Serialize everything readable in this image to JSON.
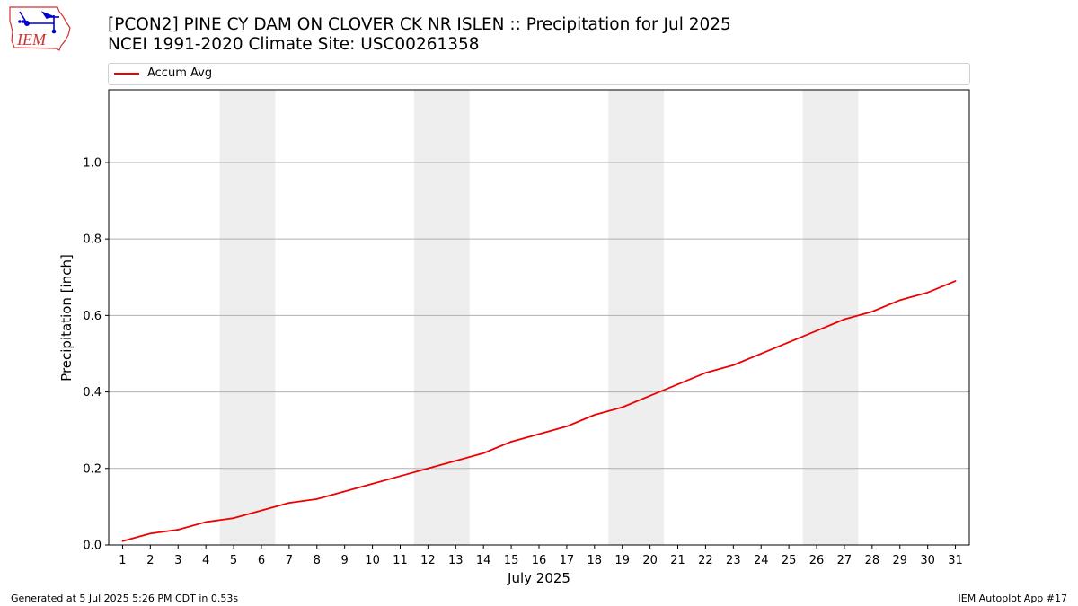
{
  "header": {
    "title_line1": "[PCON2] PINE CY DAM ON CLOVER CK NR ISLEN :: Precipitation for Jul 2025",
    "title_line2": "NCEI 1991-2020 Climate Site: USC00261358"
  },
  "logo": {
    "text": "IEM",
    "icon": "iem-logo-icon"
  },
  "colors": {
    "series": "#ee0000",
    "weekend_band": "#eeeeee",
    "grid": "#b0b0b0",
    "logo_outline": "#cc3333",
    "logo_figure": "#0000cc"
  },
  "chart_data": {
    "type": "line",
    "xlabel": "July 2025",
    "ylabel": "Precipitation [inch]",
    "x": [
      1,
      2,
      3,
      4,
      5,
      6,
      7,
      8,
      9,
      10,
      11,
      12,
      13,
      14,
      15,
      16,
      17,
      18,
      19,
      20,
      21,
      22,
      23,
      24,
      25,
      26,
      27,
      28,
      29,
      30,
      31
    ],
    "xlim": [
      0.5,
      31.5
    ],
    "ylim": [
      0,
      1.19
    ],
    "yticks": [
      0.0,
      0.2,
      0.4,
      0.6,
      0.8,
      1.0
    ],
    "ytick_labels": [
      "0.0",
      "0.2",
      "0.4",
      "0.6",
      "0.8",
      "1.0"
    ],
    "grid": "horizontal",
    "legend_position": "top, above plot",
    "shaded_weekends": [
      [
        5,
        6
      ],
      [
        12,
        13
      ],
      [
        19,
        20
      ],
      [
        26,
        27
      ]
    ],
    "series": [
      {
        "name": "Accum Avg",
        "values": [
          0.01,
          0.03,
          0.04,
          0.06,
          0.07,
          0.09,
          0.11,
          0.12,
          0.14,
          0.16,
          0.18,
          0.2,
          0.22,
          0.24,
          0.27,
          0.29,
          0.31,
          0.34,
          0.36,
          0.39,
          0.42,
          0.45,
          0.47,
          0.5,
          0.53,
          0.56,
          0.59,
          0.61,
          0.64,
          0.66,
          0.69
        ]
      }
    ]
  },
  "footer": {
    "left": "Generated at 5 Jul 2025 5:26 PM CDT in 0.53s",
    "right": "IEM Autoplot App #17"
  }
}
